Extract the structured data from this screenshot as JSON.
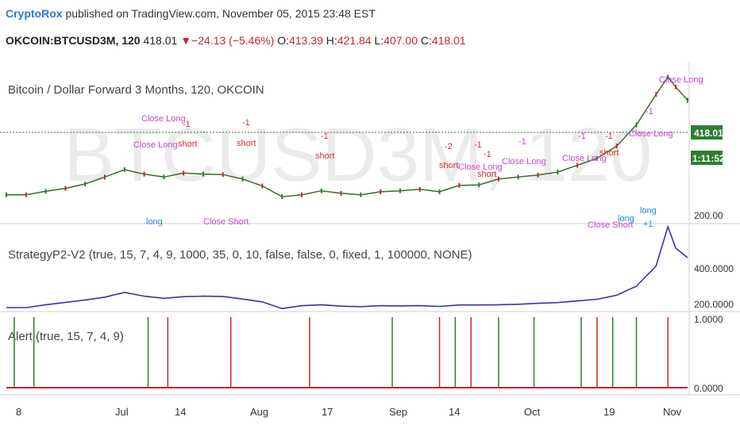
{
  "header": {
    "author": "CryptoRox",
    "published": "published on TradingView.com, November 05, 2015 23:48 EST",
    "symbol": "OKCOIN:BTCUSD3M, 120",
    "last": "418.01",
    "change": "▼−24.13 (−5.46%)",
    "open_label": "O:",
    "open": "413.39",
    "high_label": "H:",
    "high": "421.84",
    "low_label": "L:",
    "low": "407.00",
    "close_label": "C:",
    "close": "418.01"
  },
  "watermark": "BTCUSD3M, 120",
  "panes": {
    "price": {
      "title": "Bitcoin / Dollar Forward 3 Months, 120, OKCOIN",
      "last_price_badge": "418.01",
      "countdown_badge": "1:11:52",
      "axis_label": "200.00"
    },
    "strategy": {
      "title": "StrategyP2-V2 (true, 15, 7, 4, 9, 1000, 35, 0, 10, false, false, 0, fixed, 1, 100000, NONE)",
      "axis_labels": [
        "400.0000",
        "200.0000"
      ]
    },
    "alert": {
      "title": "Alert (true, 15, 7, 4, 9)",
      "axis_labels": [
        "1.0000",
        "0.0000"
      ]
    }
  },
  "x_axis_labels": [
    "8",
    "Jul",
    "14",
    "Aug",
    "17",
    "Sep",
    "14",
    "Oct",
    "19",
    "Nov"
  ],
  "signals": [
    {
      "text": "Close Long",
      "color": "#cc44cc"
    },
    {
      "text": "Close Long",
      "color": "#cc44cc"
    },
    {
      "text": "-1",
      "color": "#d32f2f"
    },
    {
      "text": "short",
      "color": "#d32f2f"
    },
    {
      "text": "-1",
      "color": "#d32f2f"
    },
    {
      "text": "short",
      "color": "#d32f2f"
    },
    {
      "text": "-1",
      "color": "#d32f2f"
    },
    {
      "text": "short",
      "color": "#d32f2f"
    },
    {
      "text": "long",
      "color": "#1e88e5"
    },
    {
      "text": "Close Short",
      "color": "#cc44cc"
    },
    {
      "text": "-2",
      "color": "#d32f2f"
    },
    {
      "text": "short",
      "color": "#d32f2f"
    },
    {
      "text": "-1",
      "color": "#d32f2f"
    },
    {
      "text": "Close Long",
      "color": "#cc44cc"
    },
    {
      "text": "-1",
      "color": "#d32f2f"
    },
    {
      "text": "short",
      "color": "#d32f2f"
    },
    {
      "text": "-1",
      "color": "#cc44cc"
    },
    {
      "text": "Close Long",
      "color": "#cc44cc"
    },
    {
      "text": "-1",
      "color": "#cc44cc"
    },
    {
      "text": "Close Long",
      "color": "#cc44cc"
    },
    {
      "text": "-1",
      "color": "#d32f2f"
    },
    {
      "text": "short",
      "color": "#d32f2f"
    },
    {
      "text": "-1",
      "color": "#cc44cc"
    },
    {
      "text": "Close Long",
      "color": "#cc44cc"
    },
    {
      "text": "Close Long",
      "color": "#cc44cc"
    },
    {
      "text": "Close Short",
      "color": "#cc44cc"
    },
    {
      "text": "long",
      "color": "#1e88e5"
    },
    {
      "text": "long",
      "color": "#1e88e5"
    },
    {
      "text": "+1",
      "color": "#1e88e5"
    }
  ],
  "chart_data": [
    {
      "type": "line",
      "title": "Bitcoin / Dollar Forward 3 Months, 120, OKCOIN",
      "x_index": [
        0,
        10,
        20,
        30,
        40,
        50,
        60,
        70,
        80,
        90,
        100,
        110,
        120,
        130,
        140,
        150,
        160,
        170,
        180,
        190,
        200,
        210,
        220,
        230,
        240,
        250,
        260,
        270,
        280,
        290,
        300,
        310,
        320,
        330,
        336,
        340,
        346
      ],
      "values": [
        226,
        226,
        233,
        239,
        248,
        262,
        277,
        268,
        262,
        270,
        268,
        267,
        258,
        244,
        222,
        226,
        234,
        229,
        226,
        232,
        234,
        237,
        232,
        245,
        246,
        258,
        262,
        266,
        272,
        286,
        300,
        325,
        368,
        430,
        465,
        445,
        418
      ],
      "ylabel": "",
      "last": 418.01
    },
    {
      "type": "line",
      "title": "StrategyP2-V2 (true, 15, 7, 4, 9, 1000, 35, 0, 10, false, false, 0, fixed, 1, 100000, NONE)",
      "x_index": [
        0,
        10,
        20,
        30,
        40,
        50,
        60,
        70,
        80,
        90,
        100,
        110,
        120,
        130,
        140,
        150,
        160,
        170,
        180,
        190,
        200,
        210,
        220,
        230,
        240,
        250,
        260,
        270,
        280,
        290,
        300,
        310,
        320,
        330,
        336,
        340,
        346
      ],
      "values": [
        200,
        200,
        212,
        222,
        232,
        244,
        264,
        248,
        239,
        246,
        248,
        247,
        236,
        224,
        196,
        208,
        212,
        206,
        204,
        208,
        207,
        208,
        205,
        211,
        211,
        212,
        214,
        218,
        221,
        228,
        235,
        252,
        290,
        375,
        540,
        450,
        410
      ],
      "ylim": [
        200,
        500
      ]
    },
    {
      "type": "bar",
      "title": "Alert (true, 15, 7, 4, 9)",
      "ylim": [
        0,
        1
      ],
      "alerts": [
        {
          "x_index": 4,
          "value": 1,
          "color": "#2e7d32"
        },
        {
          "x_index": 14,
          "value": 1,
          "color": "#2e7d32"
        },
        {
          "x_index": 72,
          "value": 1,
          "color": "#2e7d32"
        },
        {
          "x_index": 82,
          "value": 1,
          "color": "#c62828"
        },
        {
          "x_index": 114,
          "value": 1,
          "color": "#c62828"
        },
        {
          "x_index": 154,
          "value": 1,
          "color": "#c62828"
        },
        {
          "x_index": 196,
          "value": 1,
          "color": "#2e7d32"
        },
        {
          "x_index": 220,
          "value": 1,
          "color": "#c62828"
        },
        {
          "x_index": 228,
          "value": 1,
          "color": "#2e7d32"
        },
        {
          "x_index": 236,
          "value": 1,
          "color": "#c62828"
        },
        {
          "x_index": 250,
          "value": 1,
          "color": "#2e7d32"
        },
        {
          "x_index": 268,
          "value": 1,
          "color": "#2e7d32"
        },
        {
          "x_index": 292,
          "value": 1,
          "color": "#2e7d32"
        },
        {
          "x_index": 300,
          "value": 1,
          "color": "#c62828"
        },
        {
          "x_index": 308,
          "value": 1,
          "color": "#2e7d32"
        },
        {
          "x_index": 320,
          "value": 1,
          "color": "#2e7d32"
        },
        {
          "x_index": 336,
          "value": 1,
          "color": "#c62828"
        }
      ]
    }
  ]
}
